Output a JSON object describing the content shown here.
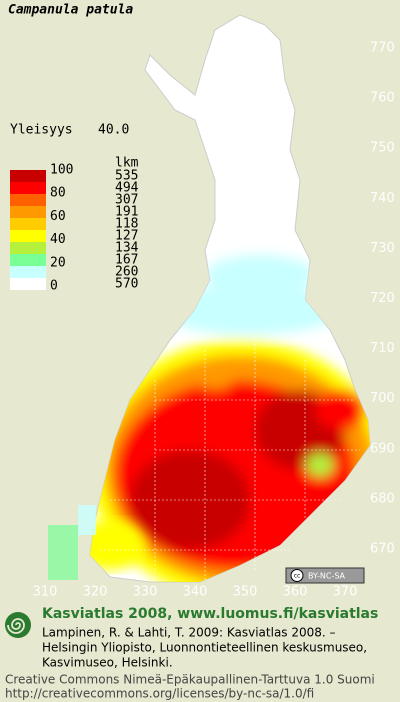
{
  "title": "Campanula patula",
  "commonness": {
    "label": "Yleisyys",
    "value": "40.0"
  },
  "legend": {
    "scale_labels": [
      100,
      80,
      60,
      40,
      20,
      0
    ],
    "count_header": "lkm",
    "counts": [
      535,
      494,
      307,
      191,
      118,
      127,
      134,
      167,
      260,
      570
    ],
    "colors": [
      "#c80000",
      "#ff0000",
      "#ff6000",
      "#ff9900",
      "#ffcc00",
      "#ffff00",
      "#b4f03c",
      "#78ff96",
      "#c8ffff",
      "#ffffff"
    ]
  },
  "map": {
    "north_labels": [
      770,
      760,
      750,
      740,
      730,
      720,
      710,
      700,
      690,
      680,
      670
    ],
    "east_labels": [
      310,
      320,
      330,
      340,
      350,
      360,
      370
    ]
  },
  "license_badge": "BY-NC-SA",
  "footer": {
    "heading": "Kasviatlas 2008, www.luomus.fi/kasviatlas",
    "reference": [
      "Lampinen, R. & Lahti, T. 2009: Kasviatlas 2008. –",
      "Helsingin Yliopisto, Luonnontieteellinen keskusmuseo,",
      "Kasvimuseo, Helsinki."
    ],
    "license": [
      "Creative Commons Nimeä-Epäkaupallinen-Tarttuva 1.0 Suomi",
      "http://creativecommons.org/licenses/by-nc-sa/1.0/fi"
    ]
  }
}
